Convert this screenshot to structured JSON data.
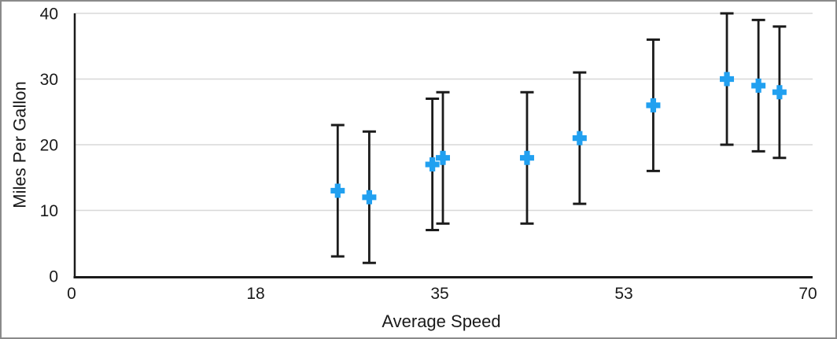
{
  "chart_data": {
    "type": "scatter",
    "title": "",
    "xlabel": "Average Speed",
    "ylabel": "Miles Per Gallon",
    "x_axis": {
      "min": 0,
      "max": 70,
      "tick_labels": [
        "0",
        "18",
        "35",
        "53",
        "70"
      ]
    },
    "y_axis": {
      "min": 0,
      "max": 40,
      "tick_labels": [
        "0",
        "10",
        "20",
        "30",
        "40"
      ]
    },
    "gridlines": "horizontal",
    "legend_position": "none",
    "colors": {
      "marker": "#21a0f0",
      "error_bar": "#1b1b1b",
      "axis": "#1b1b1b",
      "gridline": "#d8d8d8",
      "label_text": "#1a1a1a",
      "frame_border": "#8a8a8a",
      "background": "#ffffff"
    },
    "series": [
      {
        "marker": "plus",
        "error_bars": "y-symmetric",
        "points": [
          {
            "x": 25,
            "y": 13,
            "error": 10
          },
          {
            "x": 28,
            "y": 12,
            "error": 10
          },
          {
            "x": 34,
            "y": 17,
            "error": 10
          },
          {
            "x": 35,
            "y": 18,
            "error": 10
          },
          {
            "x": 43,
            "y": 18,
            "error": 10
          },
          {
            "x": 48,
            "y": 21,
            "error": 10
          },
          {
            "x": 55,
            "y": 26,
            "error": 10
          },
          {
            "x": 62,
            "y": 30,
            "error": 10
          },
          {
            "x": 65,
            "y": 29,
            "error": 10
          },
          {
            "x": 67,
            "y": 28,
            "error": 10
          }
        ]
      }
    ]
  }
}
